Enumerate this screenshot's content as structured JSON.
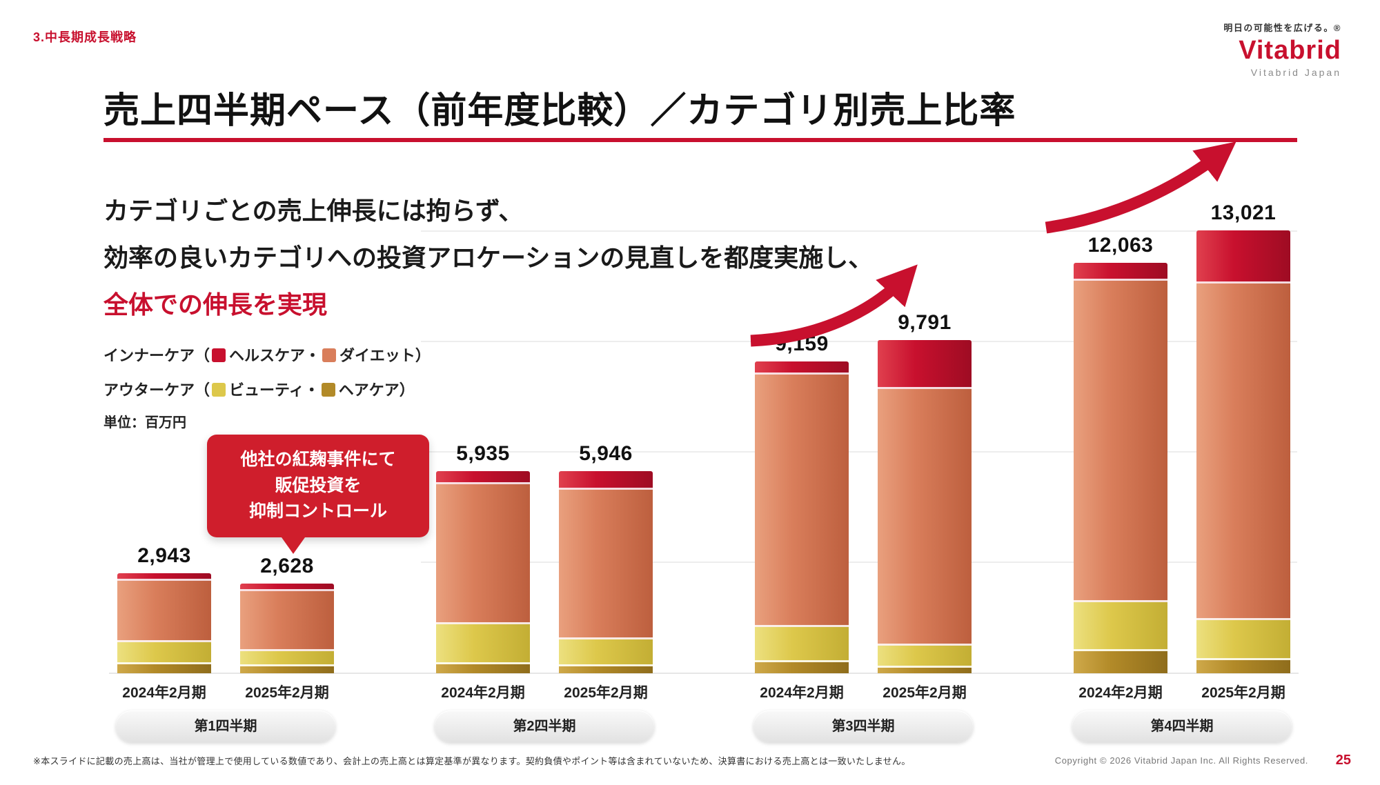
{
  "header": {
    "section_label": "3.中長期成長戦略",
    "brand": {
      "tagline": "明日の可能性を広げる。®",
      "logo_text": "Vitabrid",
      "logo_subtext": "Vitabrid Japan"
    }
  },
  "title": "売上四半期ペース（前年度比較）／カテゴリ別売上比率",
  "lead": {
    "lines": [
      "カテゴリごとの売上伸長には拘らず、",
      "効率の良いカテゴリへの投資アロケーションの見直しを都度実施し、",
      "全体での伸長を実現"
    ]
  },
  "legend": {
    "open": "（",
    "close": "）",
    "separator": "・",
    "rows": [
      {
        "group": "インナーケア",
        "items": [
          "ヘルスケア",
          "ダイエット"
        ]
      },
      {
        "group": "アウターケア",
        "items": [
          "ビューティ",
          "ヘアケア"
        ]
      }
    ]
  },
  "unit_label": "単位：百万円",
  "callout": {
    "lines": [
      "他社の紅麹事件にて",
      "販促投資を",
      "抑制コントロール"
    ],
    "color": "#cf1e2c"
  },
  "colors": {
    "accent_red": "#c8102e"
  },
  "chart_data": {
    "type": "bar",
    "stacked": true,
    "unit": "百万円",
    "ylim": [
      0,
      13500
    ],
    "grid": true,
    "series": [
      {
        "name": "ヘアケア",
        "color": "#b28a28",
        "light": "#cfa94a",
        "dark": "#8f6d1c"
      },
      {
        "name": "ビューティ",
        "color": "#ddc84b",
        "light": "#ece07f",
        "dark": "#c3ae34"
      },
      {
        "name": "ダイエット",
        "color": "#d97e5b",
        "light": "#e9a07e",
        "dark": "#bd5f3e"
      },
      {
        "name": "ヘルスケア",
        "color": "#c8102e",
        "light": "#e0404e",
        "dark": "#9e0c23"
      }
    ],
    "groups": [
      {
        "label": "第1四半期",
        "bars": [
          {
            "x_label": "2024年2月期",
            "total": 2943,
            "total_label": "2,943",
            "values": [
              260,
              650,
              1820,
              213
            ]
          },
          {
            "x_label": "2025年2月期",
            "total": 2628,
            "total_label": "2,628",
            "values": [
              200,
              450,
              1750,
              228
            ]
          }
        ]
      },
      {
        "label": "第2四半期",
        "bars": [
          {
            "x_label": "2024年2月期",
            "total": 5935,
            "total_label": "5,935",
            "values": [
              260,
              1175,
              4110,
              390
            ]
          },
          {
            "x_label": "2025年2月期",
            "total": 5946,
            "total_label": "5,946",
            "values": [
              210,
              785,
              4400,
              551
            ]
          }
        ]
      },
      {
        "label": "第3四半期",
        "bars": [
          {
            "x_label": "2024年2月期",
            "total": 9159,
            "total_label": "9,159",
            "values": [
              315,
              1045,
              7405,
              394
            ]
          },
          {
            "x_label": "2025年2月期",
            "total": 9791,
            "total_label": "9,791",
            "values": [
              155,
              655,
              7545,
              1436
            ]
          }
        ]
      },
      {
        "label": "第4四半期",
        "bars": [
          {
            "x_label": "2024年2月期",
            "total": 12063,
            "total_label": "12,063",
            "values": [
              650,
              1435,
              9455,
              523
            ]
          },
          {
            "x_label": "2025年2月期",
            "total": 13021,
            "total_label": "13,021",
            "values": [
              390,
              1175,
              9885,
              1571
            ]
          }
        ]
      }
    ]
  },
  "footer": {
    "note": "※本スライドに記載の売上高は、当社が管理上で使用している数値であり、会計上の売上高とは算定基準が異なります。契約負債やポイント等は含まれていないため、決算書における売上高とは一致いたしません。",
    "copyright": "Copyright © 2026 Vitabrid Japan Inc. All Rights Reserved.",
    "page_number": "25"
  }
}
